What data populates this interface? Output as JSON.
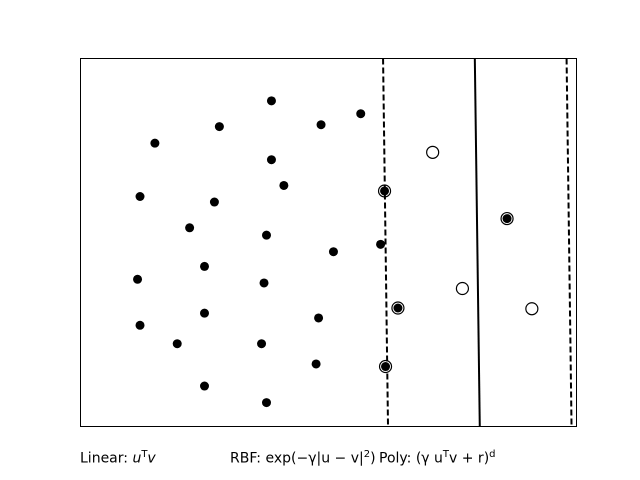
{
  "chart_data": {
    "type": "scatter",
    "title": "",
    "xlabel": "",
    "ylabel": "",
    "xlim": [
      0,
      10
    ],
    "ylim": [
      0,
      10
    ],
    "ticks_visible": false,
    "grid": false,
    "series": [
      {
        "marker": "filled-circle",
        "color": "#000000",
        "points": [
          [
            3.85,
            8.85
          ],
          [
            2.8,
            8.15
          ],
          [
            1.5,
            7.7
          ],
          [
            4.85,
            8.2
          ],
          [
            5.65,
            8.5
          ],
          [
            3.85,
            7.25
          ],
          [
            4.1,
            6.55
          ],
          [
            1.2,
            6.25
          ],
          [
            2.7,
            6.1
          ],
          [
            2.2,
            5.4
          ],
          [
            3.75,
            5.2
          ],
          [
            5.1,
            4.75
          ],
          [
            6.05,
            4.95
          ],
          [
            1.15,
            4.0
          ],
          [
            2.5,
            4.35
          ],
          [
            3.7,
            3.9
          ],
          [
            1.2,
            2.75
          ],
          [
            2.5,
            3.08
          ],
          [
            4.8,
            2.95
          ],
          [
            1.95,
            2.25
          ],
          [
            3.65,
            2.25
          ],
          [
            4.75,
            1.7
          ],
          [
            2.5,
            1.1
          ],
          [
            3.75,
            0.65
          ]
        ]
      },
      {
        "marker": "support-vector-filled",
        "color": "#000000",
        "points": [
          [
            6.13,
            6.4
          ],
          [
            6.4,
            3.22
          ],
          [
            6.15,
            1.63
          ],
          [
            8.6,
            5.65
          ]
        ]
      },
      {
        "marker": "open-circle",
        "color": "#000000",
        "points": [
          [
            7.1,
            7.45
          ],
          [
            7.7,
            3.75
          ],
          [
            9.1,
            3.2
          ]
        ]
      }
    ],
    "lines": [
      {
        "style": "dashed",
        "from": [
          6.1,
          10.0
        ],
        "to": [
          6.2,
          0.0
        ]
      },
      {
        "style": "solid",
        "from": [
          7.95,
          10.0
        ],
        "to": [
          8.05,
          0.0
        ]
      },
      {
        "style": "dashed",
        "from": [
          9.8,
          10.0
        ],
        "to": [
          9.9,
          0.0
        ]
      }
    ]
  },
  "captions": {
    "linear_prefix": "Linear: ",
    "linear_math": "u",
    "linear_sup": "T",
    "linear_tail": "v",
    "rbf_text": "RBF: exp(−γ|u − v|",
    "rbf_sup": "2",
    "rbf_close": ")",
    "poly_prefix": "Poly: (γ u",
    "poly_sup1": "T",
    "poly_mid": "v + r)",
    "poly_sup2": "d"
  }
}
